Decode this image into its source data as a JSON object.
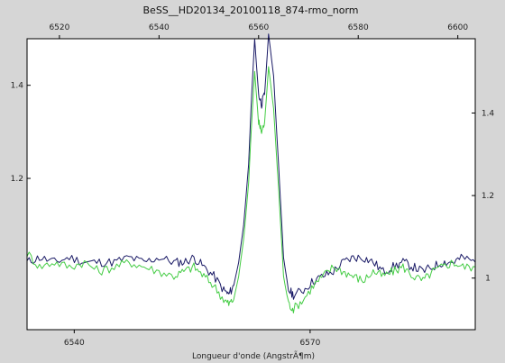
{
  "chart_data": {
    "type": "line",
    "title": "BeSS__HD20134_20100118_874-rmo_norm",
    "xlabel": "Longueur d'onde (AngstrÃ¶m)",
    "ylabel": "",
    "bottom_axis": {
      "range": [
        6534,
        6591
      ],
      "ticks": [
        6540,
        6570
      ],
      "tick_labels": [
        "6540",
        "6570"
      ]
    },
    "top_axis": {
      "range": [
        6513.5,
        6603.5
      ],
      "ticks": [
        6520,
        6540,
        6560,
        6580,
        6600
      ],
      "tick_labels": [
        "6520",
        "6540",
        "6560",
        "6580",
        "6600"
      ]
    },
    "left_axis": {
      "range": [
        0.875,
        1.5
      ],
      "ticks": [
        1.2,
        1.4
      ],
      "tick_labels": [
        "1.2",
        "1.4"
      ]
    },
    "right_axis": {
      "range": [
        0.875,
        1.58
      ],
      "ticks": [
        1.0,
        1.2,
        1.4
      ],
      "tick_labels": [
        "1",
        "1.2",
        "1.4"
      ]
    },
    "grid": false,
    "legend": "none",
    "series": [
      {
        "color": "#1a1a66",
        "axes": "top-left",
        "x": [
          6513.5,
          6516,
          6519,
          6522,
          6525,
          6528,
          6531,
          6534,
          6537,
          6540,
          6543,
          6545,
          6547,
          6549,
          6551,
          6553,
          6554,
          6555,
          6556,
          6557,
          6558,
          6558.6,
          6559.2,
          6560,
          6560.6,
          6561.2,
          6562,
          6563,
          6564,
          6565,
          6566,
          6567,
          6569,
          6571,
          6573,
          6575,
          6577,
          6579,
          6581,
          6583,
          6585,
          6587,
          6589,
          6591,
          6593,
          6595,
          6597,
          6599,
          6601,
          6603.5
        ],
        "y": [
          1.02,
          1.03,
          1.02,
          1.03,
          1.02,
          1.02,
          1.02,
          1.03,
          1.02,
          1.03,
          1.02,
          1.02,
          1.03,
          1.01,
          0.99,
          0.96,
          0.95,
          0.97,
          1.02,
          1.1,
          1.23,
          1.38,
          1.5,
          1.38,
          1.36,
          1.38,
          1.51,
          1.42,
          1.23,
          1.03,
          0.96,
          0.95,
          0.96,
          0.98,
          0.99,
          1.0,
          1.02,
          1.03,
          1.03,
          1.02,
          1.0,
          1.01,
          1.02,
          1.01,
          1.0,
          1.01,
          1.02,
          1.02,
          1.03,
          1.02
        ]
      },
      {
        "color": "#44cc44",
        "axes": "top-left",
        "x": [
          6513.5,
          6516,
          6519,
          6522,
          6525,
          6528,
          6531,
          6534,
          6537,
          6540,
          6543,
          6545,
          6547,
          6549,
          6551,
          6553,
          6554,
          6555,
          6556,
          6557,
          6558,
          6558.6,
          6559.2,
          6560,
          6560.6,
          6561.2,
          6562,
          6563,
          6564,
          6565,
          6566,
          6567,
          6569,
          6571,
          6573,
          6575,
          6577,
          6579,
          6581,
          6583,
          6585,
          6587,
          6589,
          6591,
          6593,
          6595,
          6597,
          6599,
          6601,
          6603.5
        ],
        "y": [
          1.04,
          1.01,
          1.02,
          1.01,
          1.02,
          1.0,
          1.01,
          1.02,
          1.01,
          1.0,
          0.99,
          1.0,
          1.01,
          0.99,
          0.97,
          0.94,
          0.93,
          0.94,
          0.99,
          1.07,
          1.19,
          1.32,
          1.43,
          1.32,
          1.3,
          1.32,
          1.44,
          1.35,
          1.18,
          0.99,
          0.93,
          0.92,
          0.94,
          0.97,
          0.99,
          1.01,
          1.0,
          0.99,
          0.98,
          1.0,
          0.99,
          1.0,
          1.01,
          0.99,
          0.98,
          1.0,
          1.01,
          1.02,
          1.01,
          1.01
        ]
      }
    ]
  }
}
